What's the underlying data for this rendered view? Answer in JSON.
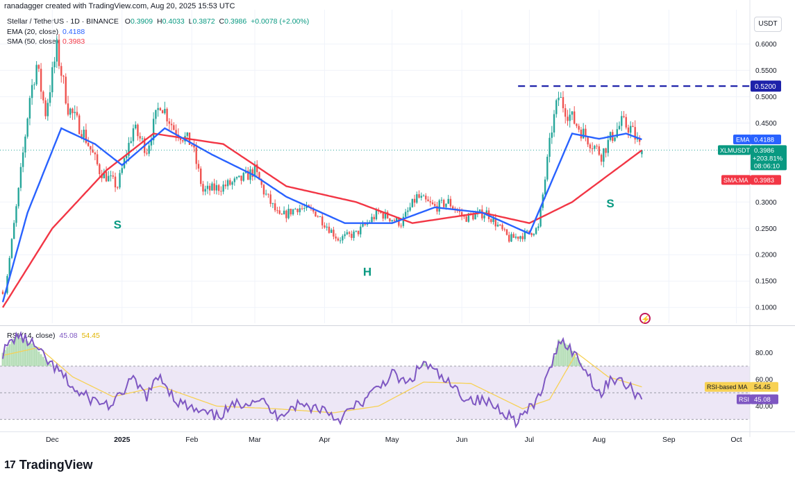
{
  "header": {
    "credit": "ranadagger created with TradingView.com, Aug 20, 2025 15:53 UTC",
    "symbol": "Stellar / TetherUS · 1D · BINANCE",
    "ohlc": {
      "o_label": "O",
      "o": "0.3909",
      "h_label": "H",
      "h": "0.4033",
      "l_label": "L",
      "l": "0.3872",
      "c_label": "C",
      "c": "0.3986",
      "change": "+0.0078 (+2.00%)"
    },
    "ema_label": "EMA (20, close)",
    "ema_value": "0.4188",
    "sma_label": "SMA (50, close)",
    "sma_value": "0.3983",
    "rsi_label": "RSI (14, close)",
    "rsi_value": "45.08",
    "rsi_ma_value": "54.45"
  },
  "currency_button": "USDT",
  "footer": {
    "brand": "TradingView",
    "logo_mark": "17"
  },
  "colors": {
    "up": "#26a69a",
    "down": "#ef5350",
    "ema": "#2962ff",
    "sma": "#f23645",
    "rsi": "#7e57c2",
    "rsi_ma": "#f7d154",
    "rsi_band": "#ede7f6",
    "resistance": "#1e22aa"
  },
  "chart_data": [
    {
      "type": "candlestick",
      "title": "Stellar / TetherUS · 1D · BINANCE",
      "ylim": [
        0.07,
        0.665
      ],
      "y_ticks": [
        "0.6000",
        "0.5500",
        "0.5000",
        "0.4500",
        "0.3000",
        "0.2500",
        "0.2000",
        "0.1500",
        "0.1000"
      ],
      "x_ticks": [
        "Dec",
        "2025",
        "Feb",
        "Mar",
        "Apr",
        "May",
        "Jun",
        "Jul",
        "Aug",
        "Sep",
        "Oct"
      ],
      "x_tick_dates": [
        "2024-12-01",
        "2025-01-01",
        "2025-02-01",
        "2025-03-01",
        "2025-04-01",
        "2025-05-01",
        "2025-06-01",
        "2025-07-01",
        "2025-08-01",
        "2025-09-01",
        "2025-10-01"
      ],
      "date_range": [
        "2024-11-09",
        "2025-10-07"
      ],
      "last_candle_date": "2025-08-20",
      "price_anchors": [
        {
          "date": "2024-11-10",
          "price": 0.13
        },
        {
          "date": "2024-11-16",
          "price": 0.32
        },
        {
          "date": "2024-11-21",
          "price": 0.5
        },
        {
          "date": "2024-11-24",
          "price": 0.56
        },
        {
          "date": "2024-11-28",
          "price": 0.47
        },
        {
          "date": "2024-12-03",
          "price": 0.59
        },
        {
          "date": "2024-12-08",
          "price": 0.48
        },
        {
          "date": "2024-12-15",
          "price": 0.43
        },
        {
          "date": "2024-12-22",
          "price": 0.36
        },
        {
          "date": "2024-12-30",
          "price": 0.33
        },
        {
          "date": "2025-01-06",
          "price": 0.44
        },
        {
          "date": "2025-01-12",
          "price": 0.4
        },
        {
          "date": "2025-01-18",
          "price": 0.49
        },
        {
          "date": "2025-01-24",
          "price": 0.44
        },
        {
          "date": "2025-02-01",
          "price": 0.41
        },
        {
          "date": "2025-02-06",
          "price": 0.32
        },
        {
          "date": "2025-02-15",
          "price": 0.33
        },
        {
          "date": "2025-02-22",
          "price": 0.34
        },
        {
          "date": "2025-03-01",
          "price": 0.36
        },
        {
          "date": "2025-03-05",
          "price": 0.32
        },
        {
          "date": "2025-03-12",
          "price": 0.27
        },
        {
          "date": "2025-03-20",
          "price": 0.29
        },
        {
          "date": "2025-03-28",
          "price": 0.28
        },
        {
          "date": "2025-04-07",
          "price": 0.23
        },
        {
          "date": "2025-04-15",
          "price": 0.24
        },
        {
          "date": "2025-04-25",
          "price": 0.28
        },
        {
          "date": "2025-05-05",
          "price": 0.26
        },
        {
          "date": "2025-05-12",
          "price": 0.31
        },
        {
          "date": "2025-05-20",
          "price": 0.29
        },
        {
          "date": "2025-05-26",
          "price": 0.3
        },
        {
          "date": "2025-06-02",
          "price": 0.27
        },
        {
          "date": "2025-06-12",
          "price": 0.28
        },
        {
          "date": "2025-06-22",
          "price": 0.23
        },
        {
          "date": "2025-06-30",
          "price": 0.24
        },
        {
          "date": "2025-07-05",
          "price": 0.25
        },
        {
          "date": "2025-07-11",
          "price": 0.44
        },
        {
          "date": "2025-07-14",
          "price": 0.5
        },
        {
          "date": "2025-07-18",
          "price": 0.47
        },
        {
          "date": "2025-07-25",
          "price": 0.43
        },
        {
          "date": "2025-08-02",
          "price": 0.39
        },
        {
          "date": "2025-08-06",
          "price": 0.42
        },
        {
          "date": "2025-08-11",
          "price": 0.45
        },
        {
          "date": "2025-08-15",
          "price": 0.44
        },
        {
          "date": "2025-08-20",
          "price": 0.3986
        }
      ],
      "ema20": [
        {
          "date": "2024-11-09",
          "value": 0.11
        },
        {
          "date": "2024-11-20",
          "value": 0.28
        },
        {
          "date": "2024-12-05",
          "value": 0.44
        },
        {
          "date": "2024-12-20",
          "value": 0.41
        },
        {
          "date": "2025-01-01",
          "value": 0.37
        },
        {
          "date": "2025-01-20",
          "value": 0.44
        },
        {
          "date": "2025-02-10",
          "value": 0.39
        },
        {
          "date": "2025-03-01",
          "value": 0.35
        },
        {
          "date": "2025-03-15",
          "value": 0.31
        },
        {
          "date": "2025-04-10",
          "value": 0.26
        },
        {
          "date": "2025-05-01",
          "value": 0.26
        },
        {
          "date": "2025-05-20",
          "value": 0.29
        },
        {
          "date": "2025-06-10",
          "value": 0.28
        },
        {
          "date": "2025-07-01",
          "value": 0.24
        },
        {
          "date": "2025-07-20",
          "value": 0.43
        },
        {
          "date": "2025-08-01",
          "value": 0.42
        },
        {
          "date": "2025-08-13",
          "value": 0.43
        },
        {
          "date": "2025-08-20",
          "value": 0.4188
        }
      ],
      "sma50": [
        {
          "date": "2024-11-09",
          "value": 0.1
        },
        {
          "date": "2024-12-01",
          "value": 0.25
        },
        {
          "date": "2024-12-25",
          "value": 0.36
        },
        {
          "date": "2025-01-15",
          "value": 0.43
        },
        {
          "date": "2025-02-15",
          "value": 0.41
        },
        {
          "date": "2025-03-15",
          "value": 0.33
        },
        {
          "date": "2025-04-15",
          "value": 0.3
        },
        {
          "date": "2025-05-10",
          "value": 0.26
        },
        {
          "date": "2025-06-10",
          "value": 0.28
        },
        {
          "date": "2025-07-01",
          "value": 0.26
        },
        {
          "date": "2025-07-20",
          "value": 0.3
        },
        {
          "date": "2025-08-20",
          "value": 0.3983
        }
      ],
      "resistance": {
        "value": 0.52,
        "label": "0.5200",
        "from_date": "2025-06-26"
      },
      "annotations": [
        {
          "text": "S",
          "date": "2024-12-30",
          "price": 0.25
        },
        {
          "text": "H",
          "date": "2025-04-20",
          "price": 0.16
        },
        {
          "text": "S",
          "date": "2025-08-06",
          "price": 0.29
        }
      ],
      "price_labels": {
        "ema_tag": "EMA",
        "ema_tag_value": "0.4188",
        "symbol_tag": "XLMUSDT",
        "last_price": "0.3986",
        "pct": "+203.81%",
        "countdown": "08:06:10",
        "sma_tag": "SMA:MA",
        "sma_tag_value": "0.3983"
      }
    },
    {
      "type": "line",
      "title": "RSI (14, close)",
      "ylim": [
        22,
        97
      ],
      "y_ticks": [
        "80.00",
        "60.00",
        "40.00"
      ],
      "bands": {
        "upper": 70,
        "middle": 50,
        "lower": 30
      },
      "rsi_anchors": [
        {
          "date": "2024-11-09",
          "value": 80
        },
        {
          "date": "2024-11-15",
          "value": 93
        },
        {
          "date": "2024-11-22",
          "value": 87
        },
        {
          "date": "2024-11-28",
          "value": 75
        },
        {
          "date": "2024-12-05",
          "value": 64
        },
        {
          "date": "2024-12-12",
          "value": 50
        },
        {
          "date": "2024-12-20",
          "value": 44
        },
        {
          "date": "2024-12-28",
          "value": 40
        },
        {
          "date": "2025-01-05",
          "value": 60
        },
        {
          "date": "2025-01-12",
          "value": 48
        },
        {
          "date": "2025-01-18",
          "value": 63
        },
        {
          "date": "2025-01-25",
          "value": 44
        },
        {
          "date": "2025-02-03",
          "value": 36
        },
        {
          "date": "2025-02-12",
          "value": 32
        },
        {
          "date": "2025-02-22",
          "value": 42
        },
        {
          "date": "2025-03-03",
          "value": 46
        },
        {
          "date": "2025-03-10",
          "value": 33
        },
        {
          "date": "2025-03-20",
          "value": 41
        },
        {
          "date": "2025-04-01",
          "value": 38
        },
        {
          "date": "2025-04-07",
          "value": 30
        },
        {
          "date": "2025-04-20",
          "value": 46
        },
        {
          "date": "2025-05-01",
          "value": 64
        },
        {
          "date": "2025-05-08",
          "value": 56
        },
        {
          "date": "2025-05-15",
          "value": 73
        },
        {
          "date": "2025-05-25",
          "value": 58
        },
        {
          "date": "2025-06-03",
          "value": 46
        },
        {
          "date": "2025-06-12",
          "value": 43
        },
        {
          "date": "2025-06-20",
          "value": 36
        },
        {
          "date": "2025-06-25",
          "value": 29
        },
        {
          "date": "2025-07-03",
          "value": 40
        },
        {
          "date": "2025-07-10",
          "value": 65
        },
        {
          "date": "2025-07-14",
          "value": 90
        },
        {
          "date": "2025-07-18",
          "value": 86
        },
        {
          "date": "2025-07-25",
          "value": 70
        },
        {
          "date": "2025-08-02",
          "value": 48
        },
        {
          "date": "2025-08-06",
          "value": 62
        },
        {
          "date": "2025-08-12",
          "value": 57
        },
        {
          "date": "2025-08-18",
          "value": 49
        },
        {
          "date": "2025-08-20",
          "value": 45.08
        }
      ],
      "rsi_ma_anchors": [
        {
          "date": "2024-11-09",
          "value": 78
        },
        {
          "date": "2024-11-25",
          "value": 84
        },
        {
          "date": "2024-12-10",
          "value": 62
        },
        {
          "date": "2024-12-28",
          "value": 47
        },
        {
          "date": "2025-01-18",
          "value": 55
        },
        {
          "date": "2025-02-12",
          "value": 40
        },
        {
          "date": "2025-03-10",
          "value": 38
        },
        {
          "date": "2025-04-05",
          "value": 35
        },
        {
          "date": "2025-04-25",
          "value": 40
        },
        {
          "date": "2025-05-15",
          "value": 58
        },
        {
          "date": "2025-06-05",
          "value": 57
        },
        {
          "date": "2025-06-28",
          "value": 38
        },
        {
          "date": "2025-07-10",
          "value": 45
        },
        {
          "date": "2025-07-22",
          "value": 80
        },
        {
          "date": "2025-08-05",
          "value": 62
        },
        {
          "date": "2025-08-20",
          "value": 54.45
        }
      ],
      "labels": {
        "ma_tag": "RSI-based MA",
        "ma_tag_value": "54.45",
        "rsi_tag": "RSI",
        "rsi_tag_value": "45.08"
      }
    }
  ]
}
